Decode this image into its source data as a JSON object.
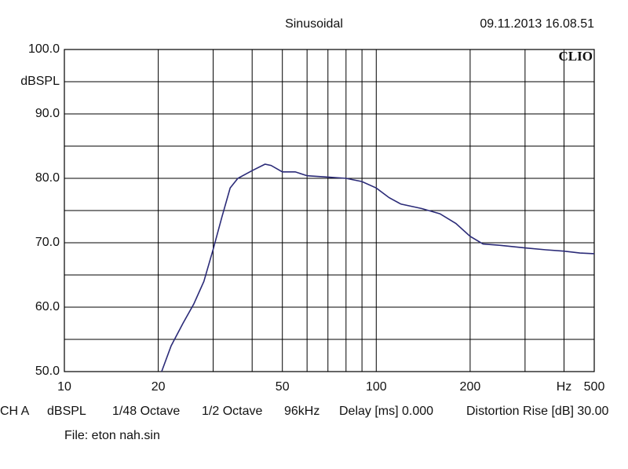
{
  "chart_data": {
    "type": "line",
    "title": "Sinusoidal",
    "timestamp": "09.11.2013 16.08.51",
    "brand": "CLIO",
    "y_label": "dBSPL",
    "x_unit": "Hz",
    "log_x": true,
    "xlim": [
      10,
      500
    ],
    "xticks": [
      10,
      20,
      50,
      100,
      200,
      500
    ],
    "xminor": [
      30,
      40,
      60,
      70,
      80,
      90,
      300,
      400
    ],
    "ylim": [
      50,
      100
    ],
    "yticks": [
      {
        "value": 50,
        "label": "50.0"
      },
      {
        "value": 60,
        "label": "60.0"
      },
      {
        "value": 70,
        "label": "70.0"
      },
      {
        "value": 80,
        "label": "80.0"
      },
      {
        "value": 90,
        "label": "90.0"
      },
      {
        "value": 100,
        "label": "100.0"
      }
    ],
    "yminor": [
      55,
      65,
      75,
      85,
      95
    ],
    "grid": true,
    "x": [
      20.5,
      22,
      24,
      26,
      28,
      30,
      32,
      34,
      36,
      40,
      44,
      46,
      50,
      55,
      60,
      70,
      80,
      90,
      100,
      110,
      120,
      140,
      160,
      180,
      200,
      220,
      250,
      300,
      350,
      400,
      450,
      500
    ],
    "series": [
      {
        "name": "eton nah",
        "color": "#2b2b78",
        "values": [
          50,
          54,
          57.5,
          60.5,
          64,
          69,
          74,
          78.5,
          80,
          81.2,
          82.2,
          82,
          81,
          81,
          80.4,
          80.2,
          80,
          79.5,
          78.5,
          77,
          76,
          75.3,
          74.5,
          73,
          71,
          69.8,
          69.6,
          69.2,
          68.9,
          68.7,
          68.4,
          68.3
        ]
      }
    ],
    "footer": [
      "CH A",
      "dBSPL",
      "1/48 Octave",
      "1/2 Octave",
      "96kHz",
      "Delay [ms] 0.000",
      "Distortion Rise [dB] 30.00"
    ],
    "file": "File: eton nah.sin"
  }
}
